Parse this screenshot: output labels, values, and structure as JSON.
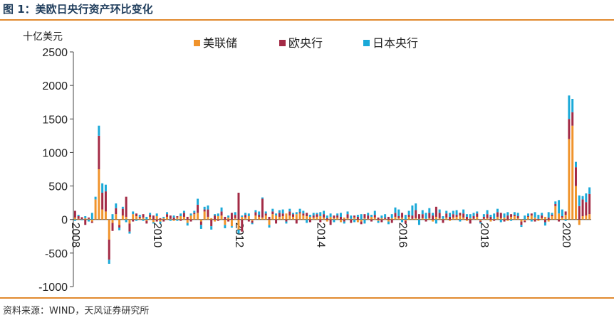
{
  "header": {
    "title": "图 1：美欧日央行资产环比变化"
  },
  "footer": {
    "source": "资料来源：WIND，天风证券研究所"
  },
  "colors": {
    "accent": "#e1892e",
    "fed": "#f0932b",
    "ecb": "#a32a45",
    "boj": "#1aa9d8"
  },
  "chart_data": {
    "type": "bar",
    "stacked": true,
    "unit_label": "十亿美元",
    "ylim": [
      -1000,
      2500
    ],
    "yticks": [
      "2500",
      "2000",
      "1500",
      "1000",
      "500",
      "0",
      "-500",
      "-1000"
    ],
    "xtick_labels": [
      "2008",
      "2010",
      "2012",
      "2014",
      "2016",
      "2018",
      "2020"
    ],
    "xtick_index": [
      0,
      24,
      48,
      72,
      96,
      120,
      144
    ],
    "legend": [
      "美联储",
      "欧央行",
      "日本央行"
    ],
    "legend_position": "top",
    "grid": false,
    "series": [
      {
        "name": "美联储",
        "values": [
          30,
          10,
          5,
          20,
          10,
          -30,
          300,
          750,
          150,
          120,
          -300,
          -50,
          80,
          -80,
          60,
          40,
          -60,
          80,
          50,
          20,
          30,
          -20,
          40,
          -40,
          50,
          -30,
          20,
          40,
          10,
          -20,
          30,
          50,
          40,
          -50,
          60,
          80,
          100,
          -30,
          120,
          40,
          20,
          -30,
          50,
          60,
          -80,
          30,
          -100,
          20,
          -150,
          40,
          30,
          50,
          -20,
          60,
          40,
          30,
          60,
          -80,
          80,
          60,
          40,
          50,
          90,
          60,
          40,
          80,
          90,
          60,
          50,
          40,
          30,
          40,
          50,
          30,
          -30,
          40,
          20,
          30,
          -40,
          30,
          20,
          10,
          30,
          -40,
          -30,
          20,
          10,
          40,
          30,
          -20,
          20,
          10,
          -30,
          20,
          40,
          20,
          30,
          -20,
          40,
          10,
          20,
          10,
          20,
          10,
          20,
          -30,
          40,
          20,
          10,
          30,
          -20,
          30,
          40,
          60,
          30,
          -20,
          20,
          10,
          40,
          -20,
          10,
          20,
          -30,
          10,
          40,
          20,
          30,
          -20,
          40,
          50,
          20,
          -30,
          -20,
          40,
          60,
          30,
          -20,
          20,
          40,
          -30,
          50,
          200,
          90,
          30,
          70,
          1200,
          1400,
          500,
          -80,
          50,
          60,
          80
        ]
      },
      {
        "name": "欧央行",
        "values": [
          100,
          40,
          30,
          -80,
          20,
          -20,
          0,
          500,
          250,
          300,
          -300,
          -120,
          90,
          -40,
          100,
          300,
          -120,
          -30,
          40,
          20,
          50,
          -40,
          30,
          60,
          -30,
          20,
          -30,
          40,
          50,
          30,
          20,
          -20,
          60,
          40,
          -30,
          20,
          120,
          -50,
          30,
          110,
          -100,
          60,
          -20,
          60,
          40,
          -30,
          100,
          50,
          400,
          -180,
          40,
          -30,
          -30,
          50,
          30,
          280,
          30,
          40,
          40,
          -60,
          60,
          40,
          -30,
          60,
          40,
          -60,
          20,
          30,
          50,
          -40,
          30,
          40,
          -40,
          50,
          20,
          -80,
          40,
          30,
          40,
          -30,
          60,
          -50,
          30,
          40,
          -40,
          60,
          50,
          -30,
          40,
          30,
          -40,
          20,
          40,
          -50,
          60,
          30,
          70,
          -40,
          30,
          50,
          120,
          70,
          60,
          -30,
          80,
          60,
          150,
          80,
          -50,
          60,
          40,
          50,
          30,
          40,
          60,
          40,
          -60,
          40,
          50,
          -20,
          30,
          60,
          40,
          -20,
          70,
          80,
          -30,
          60,
          40,
          20,
          30,
          -50,
          -20,
          10,
          30,
          -30,
          10,
          40,
          -40,
          30,
          20,
          30,
          -30,
          20,
          50,
          300,
          200,
          280,
          200,
          250,
          200,
          300
        ]
      },
      {
        "name": "日本央行",
        "values": [
          -20,
          20,
          -10,
          30,
          -30,
          100,
          40,
          150,
          140,
          100,
          -60,
          80,
          70,
          -40,
          30,
          -40,
          -30,
          40,
          -20,
          30,
          -20,
          40,
          30,
          -20,
          40,
          -30,
          20,
          30,
          -20,
          30,
          -20,
          40,
          30,
          -40,
          30,
          30,
          90,
          -60,
          40,
          60,
          -50,
          20,
          40,
          60,
          -50,
          30,
          -20,
          40,
          -60,
          20,
          30,
          40,
          -20,
          30,
          50,
          20,
          30,
          -40,
          40,
          30,
          40,
          60,
          -30,
          40,
          20,
          30,
          50,
          40,
          -50,
          30,
          40,
          20,
          60,
          50,
          40,
          50,
          -40,
          30,
          60,
          -30,
          40,
          50,
          -40,
          30,
          80,
          -60,
          40,
          30,
          60,
          -30,
          40,
          50,
          -40,
          60,
          80,
          100,
          -40,
          70,
          60,
          150,
          100,
          -80,
          60,
          90,
          70,
          40,
          -60,
          50,
          40,
          40,
          60,
          50,
          70,
          -30,
          60,
          40,
          60,
          50,
          30,
          -20,
          40,
          60,
          30,
          80,
          50,
          -40,
          60,
          50,
          -20,
          40,
          50,
          -30,
          60,
          40,
          -30,
          80,
          60,
          40,
          -50,
          80,
          30,
          40,
          200,
          100,
          -20,
          350,
          200,
          80,
          160,
          50,
          130,
          100
        ]
      }
    ]
  }
}
